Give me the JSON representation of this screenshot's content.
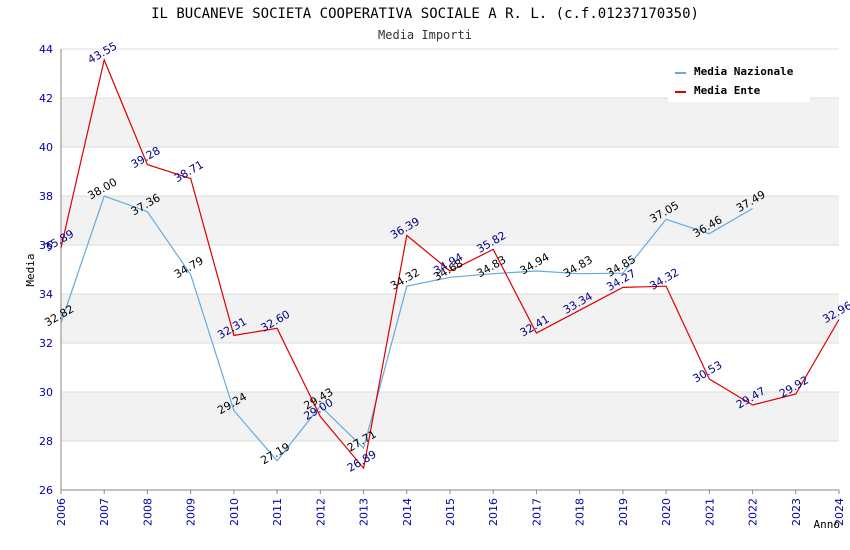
{
  "chart_data": {
    "type": "line",
    "title": "IL BUCANEVE SOCIETA COOPERATIVA SOCIALE A R. L. (c.f.01237170350)",
    "subtitle": "Media Importi",
    "xlabel": "Anno",
    "ylabel": "Media",
    "ylim": [
      26,
      44
    ],
    "yticks": [
      "26",
      "28",
      "30",
      "32",
      "34",
      "36",
      "38",
      "40",
      "42",
      "44"
    ],
    "categories": [
      "2006",
      "2007",
      "2008",
      "2009",
      "2010",
      "2011",
      "2012",
      "2013",
      "2014",
      "2015",
      "2016",
      "2017",
      "2018",
      "2019",
      "2020",
      "2021",
      "2022",
      "2023",
      "2024"
    ],
    "series": [
      {
        "name": "Media Nazionale",
        "color": "#66aadd",
        "label_color": "#000000",
        "values": [
          32.82,
          38.0,
          37.36,
          34.79,
          29.24,
          27.19,
          29.43,
          27.71,
          34.32,
          34.68,
          34.83,
          34.94,
          34.83,
          34.85,
          37.05,
          36.46,
          37.49,
          null,
          null
        ],
        "labels": [
          "32.82",
          "38.00",
          "37.36",
          "34.79",
          "29.24",
          "27.19",
          "29.43",
          "27.71",
          "34.32",
          "34.68",
          "34.83",
          "34.94",
          "34.83",
          "34.85",
          "37.05",
          "36.46",
          "37.49",
          null,
          null
        ]
      },
      {
        "name": "Media Ente",
        "color": "#dd0000",
        "label_color": "#000088",
        "values": [
          35.89,
          43.55,
          39.28,
          38.71,
          32.31,
          32.6,
          29.0,
          26.89,
          36.39,
          34.94,
          35.82,
          32.41,
          33.34,
          34.27,
          34.32,
          30.53,
          29.47,
          29.92,
          32.96
        ],
        "labels": [
          "35.89",
          "43.55",
          "39.28",
          "38.71",
          "32.31",
          "32.60",
          "29.00",
          "26.89",
          "36.39",
          "34.94",
          "35.82",
          "32.41",
          "33.34",
          "34.27",
          "34.32",
          "30.53",
          "29.47",
          "29.92",
          "32.96"
        ]
      }
    ],
    "legend_position": "top-right",
    "band_colors": [
      "#ffffff",
      "#f2f2f2"
    ],
    "grid_color": "#dddddd"
  }
}
